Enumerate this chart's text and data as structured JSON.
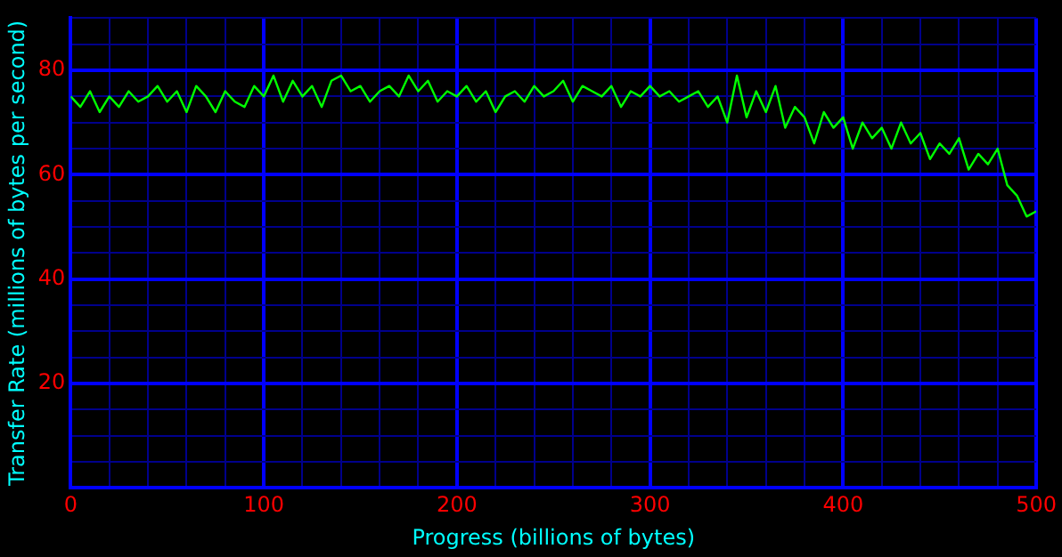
{
  "chart_data": {
    "type": "line",
    "xlabel": "Progress (billions of bytes)",
    "ylabel": "Transfer Rate (millions of bytes per second)",
    "x": [
      0,
      5,
      10,
      15,
      20,
      25,
      30,
      35,
      40,
      45,
      50,
      55,
      60,
      65,
      70,
      75,
      80,
      85,
      90,
      95,
      100,
      105,
      110,
      115,
      120,
      125,
      130,
      135,
      140,
      145,
      150,
      155,
      160,
      165,
      170,
      175,
      180,
      185,
      190,
      195,
      200,
      205,
      210,
      215,
      220,
      225,
      230,
      235,
      240,
      245,
      250,
      255,
      260,
      265,
      270,
      275,
      280,
      285,
      290,
      295,
      300,
      305,
      310,
      315,
      320,
      325,
      330,
      335,
      340,
      345,
      350,
      355,
      360,
      365,
      370,
      375,
      380,
      385,
      390,
      395,
      400,
      405,
      410,
      415,
      420,
      425,
      430,
      435,
      440,
      445,
      450,
      455,
      460,
      465,
      470,
      475,
      480,
      485,
      490,
      495,
      500
    ],
    "series": [
      {
        "color": "#00ff00",
        "values": [
          75,
          73,
          76,
          72,
          75,
          73,
          76,
          74,
          75,
          77,
          74,
          76,
          72,
          77,
          75,
          72,
          76,
          74,
          73,
          77,
          75,
          79,
          74,
          78,
          75,
          77,
          73,
          78,
          79,
          76,
          77,
          74,
          76,
          77,
          75,
          79,
          76,
          78,
          74,
          76,
          75,
          77,
          74,
          76,
          72,
          75,
          76,
          74,
          77,
          75,
          76,
          78,
          74,
          77,
          76,
          75,
          77,
          73,
          76,
          75,
          77,
          75,
          76,
          74,
          75,
          76,
          73,
          75,
          70,
          79,
          71,
          76,
          72,
          77,
          69,
          73,
          71,
          66,
          72,
          69,
          71,
          65,
          70,
          67,
          69,
          65,
          70,
          66,
          68,
          63,
          66,
          64,
          67,
          61,
          64,
          62,
          65,
          58,
          56,
          52,
          53
        ]
      }
    ],
    "xlim": [
      0,
      500
    ],
    "xticks": [
      0,
      {
        "value": 20,
        "label": null
      },
      {
        "value": 40,
        "label": null
      },
      {
        "value": 60,
        "label": null
      },
      {
        "value": 80,
        "label": null
      },
      100,
      {
        "value": 120,
        "label": null
      },
      {
        "value": 140,
        "label": null
      },
      {
        "value": 160,
        "label": null
      },
      {
        "value": 180,
        "label": null
      },
      200,
      {
        "value": 220,
        "label": null
      },
      {
        "value": 240,
        "label": null
      },
      {
        "value": 260,
        "label": null
      },
      {
        "value": 280,
        "label": null
      },
      300,
      {
        "value": 320,
        "label": null
      },
      {
        "value": 340,
        "label": null
      },
      {
        "value": 360,
        "label": null
      },
      {
        "value": 380,
        "label": null
      },
      400,
      {
        "value": 420,
        "label": null
      },
      {
        "value": 440,
        "label": null
      },
      {
        "value": 460,
        "label": null
      },
      {
        "value": 480,
        "label": null
      },
      500
    ],
    "ylim": [
      0,
      90
    ],
    "yticks": [
      {
        "value": 0,
        "label": null
      },
      {
        "value": 5,
        "label": null
      },
      {
        "value": 10,
        "label": null
      },
      {
        "value": 15,
        "label": null
      },
      20,
      {
        "value": 25,
        "label": null
      },
      {
        "value": 30,
        "label": null
      },
      {
        "value": 35,
        "label": null
      },
      40,
      {
        "value": 45,
        "label": null
      },
      {
        "value": 50,
        "label": null
      },
      {
        "value": 55,
        "label": null
      },
      60,
      {
        "value": 65,
        "label": null
      },
      {
        "value": 70,
        "label": null
      },
      {
        "value": 75,
        "label": null
      },
      80,
      {
        "value": 85,
        "label": null
      },
      {
        "value": 90,
        "label": null
      }
    ],
    "grid": true,
    "legend": false,
    "marker": "none",
    "line_style": "solid"
  }
}
